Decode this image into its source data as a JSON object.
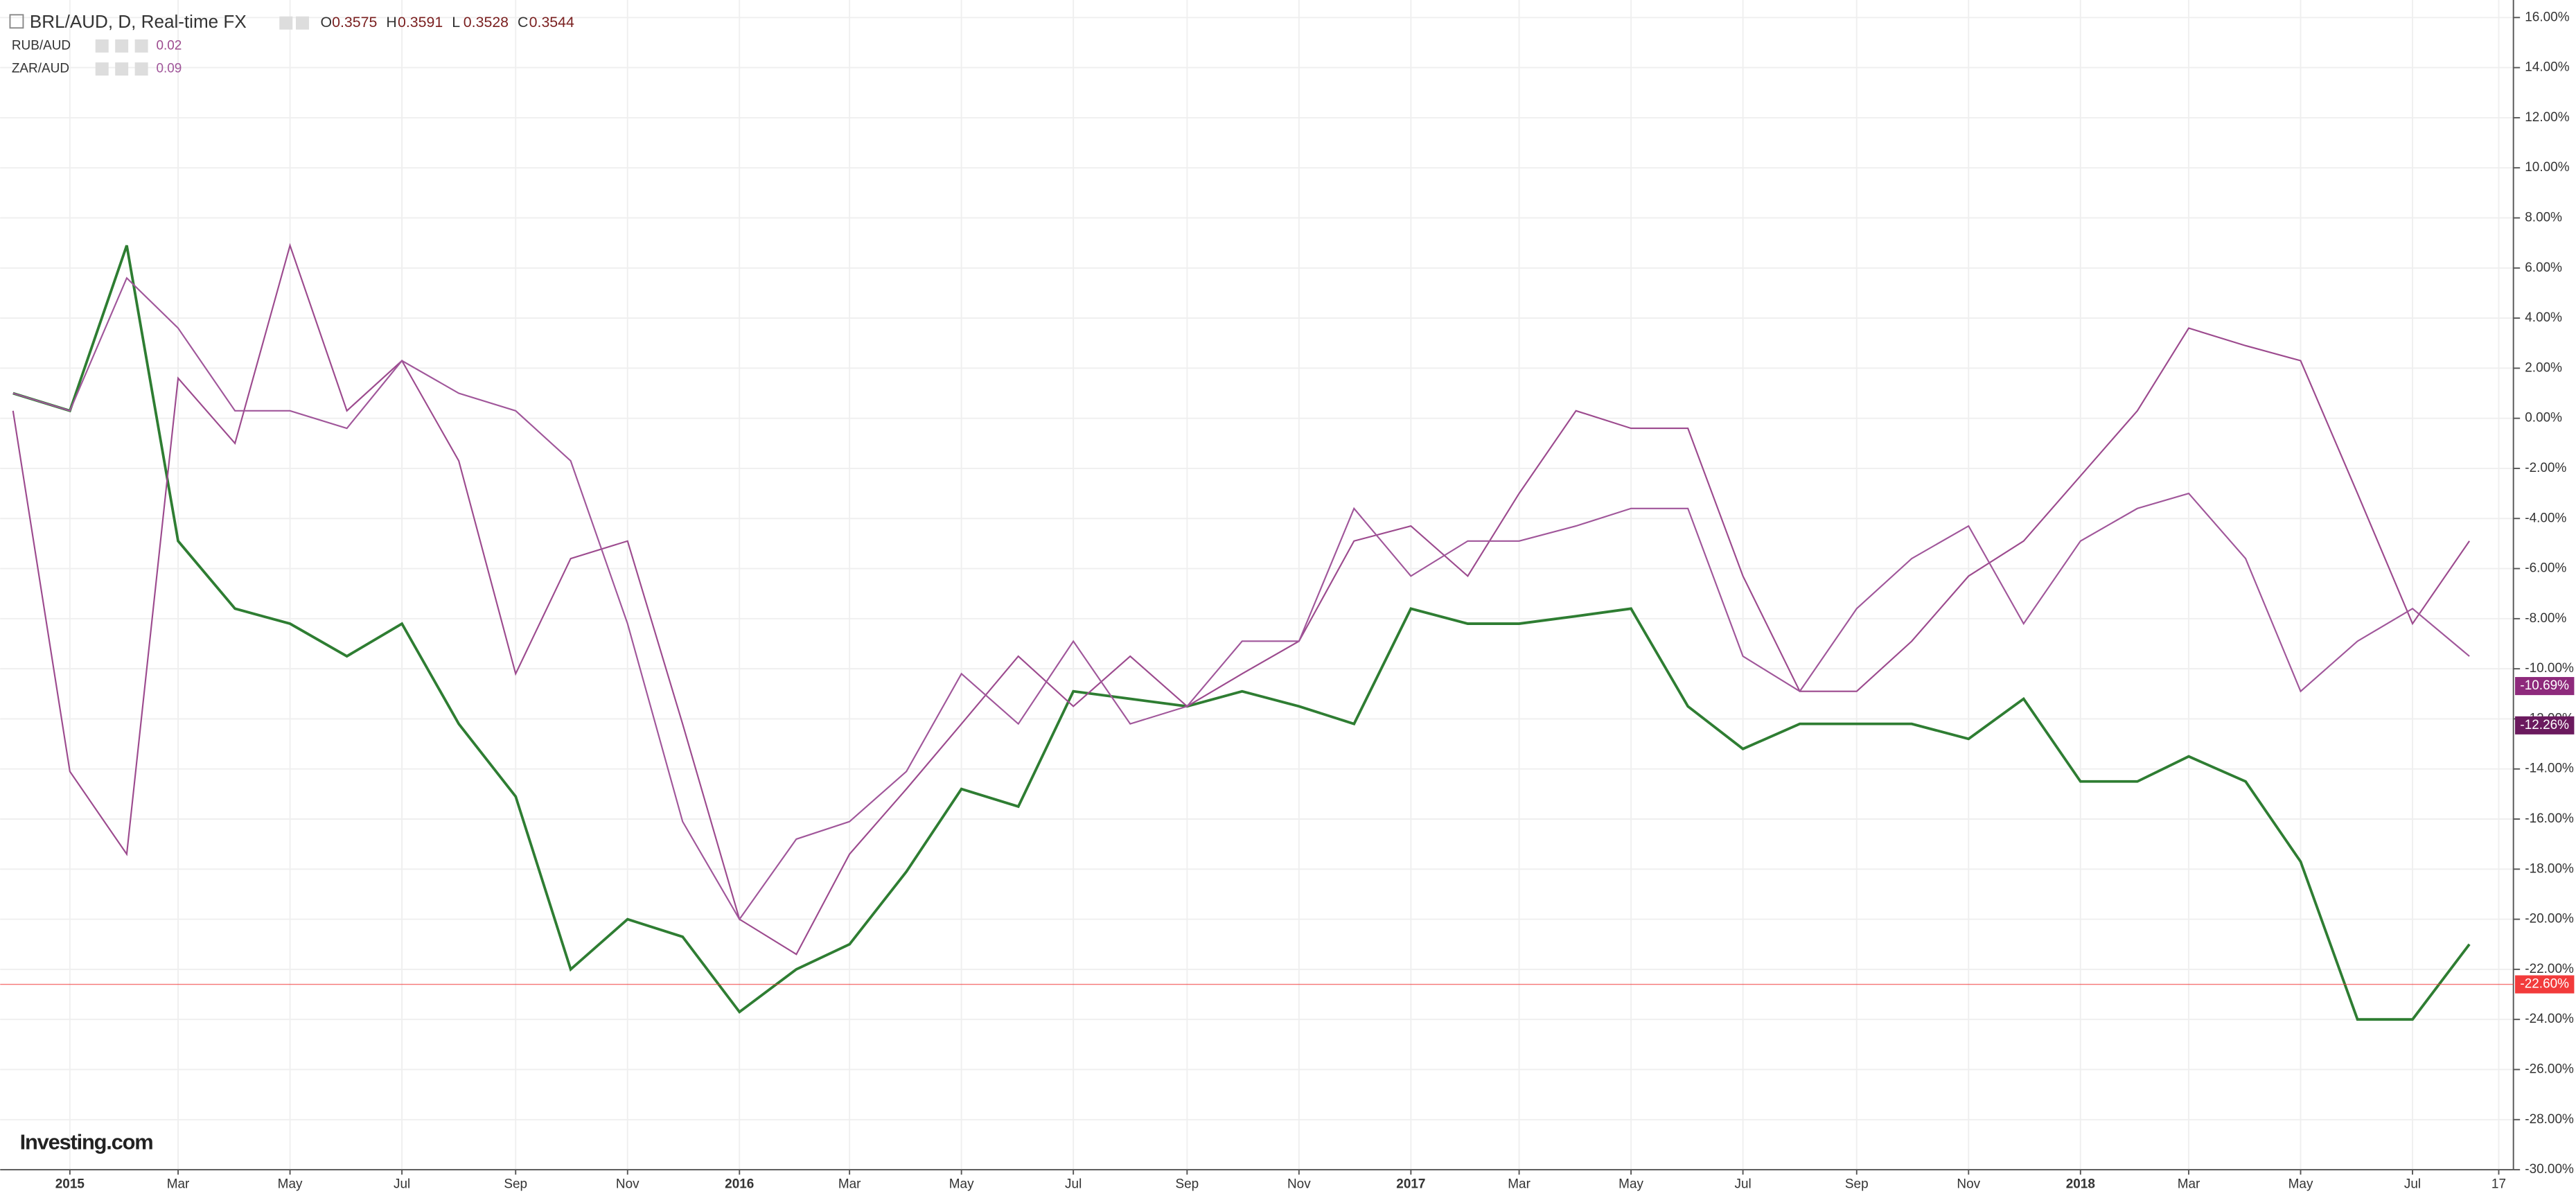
{
  "chart_data": {
    "type": "line",
    "title": "BRL/AUD, D, Real-time FX",
    "ohlc": [
      {
        "label": "O",
        "value": 0.3575
      },
      {
        "label": "H",
        "value": 0.3591
      },
      {
        "label": "L",
        "value": 0.3528
      },
      {
        "label": "C",
        "value": 0.3544
      }
    ],
    "x": [
      "2014-12",
      "2015-01",
      "2015-02",
      "2015-03",
      "2015-04",
      "2015-05",
      "2015-06",
      "2015-07",
      "2015-08",
      "2015-09",
      "2015-10",
      "2015-11",
      "2015-12",
      "2016-01",
      "2016-02",
      "2016-03",
      "2016-04",
      "2016-05",
      "2016-06",
      "2016-07",
      "2016-08",
      "2016-09",
      "2016-10",
      "2016-11",
      "2016-12",
      "2017-01",
      "2017-02",
      "2017-03",
      "2017-04",
      "2017-05",
      "2017-06",
      "2017-07",
      "2017-08",
      "2017-09",
      "2017-10",
      "2017-11",
      "2017-12",
      "2018-01",
      "2018-02",
      "2018-03",
      "2018-04",
      "2018-05",
      "2018-06",
      "2018-07",
      "2018-08"
    ],
    "series": [
      {
        "color": "#2e7d32",
        "price_line": {
          "value": -22.6,
          "label": "-22.60%"
        },
        "price_color": "#f23b3b",
        "values": [
          1.0,
          0.3,
          6.9,
          -4.9,
          -7.6,
          -8.2,
          -9.5,
          -8.2,
          -12.2,
          -15.1,
          -22.0,
          -20.0,
          -20.7,
          -23.7,
          -22.0,
          -21.0,
          -18.1,
          -14.8,
          -15.5,
          -10.9,
          -11.2,
          -11.5,
          -10.9,
          -11.5,
          -12.2,
          -7.6,
          -8.2,
          -8.2,
          -7.9,
          -7.6,
          -11.5,
          -13.2,
          -12.2,
          -12.2,
          -12.2,
          -12.8,
          -11.2,
          -14.5,
          -14.5,
          -13.5,
          -14.5,
          -17.7,
          -24.0,
          -24.0,
          -21.0
        ]
      },
      {
        "name": "RUB/AUD",
        "indicator": 0.02,
        "color": "#9c4a8e",
        "price_line": {
          "value": -10.69,
          "label": "-10.69%"
        },
        "price_color": "#8e2a7c",
        "values": [
          0.3,
          -14.1,
          -17.4,
          1.6,
          -1.0,
          6.9,
          0.3,
          2.3,
          -1.7,
          -10.2,
          -5.6,
          -4.9,
          -12.2,
          -20.0,
          -21.4,
          -17.4,
          -14.8,
          -12.2,
          -9.5,
          -11.5,
          -9.5,
          -11.5,
          -10.2,
          -8.9,
          -4.9,
          -4.3,
          -6.3,
          -3.0,
          0.3,
          -0.4,
          -0.4,
          -6.3,
          -10.9,
          -10.9,
          -8.9,
          -6.3,
          -4.9,
          -2.3,
          0.3,
          3.6,
          2.9,
          2.3,
          -3.0,
          -8.2,
          -4.9
        ]
      },
      {
        "name": "ZAR/AUD",
        "indicator": 0.09,
        "color": "#a0569a",
        "price_line": {
          "value": -12.26,
          "label": "-12.26%"
        },
        "price_color": "#6b1a5e",
        "values": [
          1.0,
          0.3,
          5.6,
          3.6,
          0.3,
          0.3,
          -0.4,
          2.3,
          1.0,
          0.3,
          -1.7,
          -8.2,
          -16.1,
          -20.0,
          -16.8,
          -16.1,
          -14.1,
          -10.2,
          -12.2,
          -8.9,
          -12.2,
          -11.5,
          -8.9,
          -8.9,
          -3.6,
          -6.3,
          -4.9,
          -4.9,
          -4.3,
          -3.6,
          -3.6,
          -9.5,
          -10.9,
          -7.6,
          -5.6,
          -4.3,
          -8.2,
          -4.9,
          -3.6,
          -3.0,
          -5.6,
          -10.9,
          -8.9,
          -7.6,
          -9.5
        ]
      }
    ],
    "xlim": [
      "2014-11-24",
      "2018-08-25"
    ],
    "xticks": [
      {
        "value": "2015-01",
        "label": "2015"
      },
      {
        "value": "2015-03",
        "label": "Mar"
      },
      {
        "value": "2015-05",
        "label": "May"
      },
      {
        "value": "2015-07",
        "label": "Jul"
      },
      {
        "value": "2015-09",
        "label": "Sep"
      },
      {
        "value": "2015-11",
        "label": "Nov"
      },
      {
        "value": "2016-01",
        "label": "2016"
      },
      {
        "value": "2016-03",
        "label": "Mar"
      },
      {
        "value": "2016-05",
        "label": "May"
      },
      {
        "value": "2016-07",
        "label": "Jul"
      },
      {
        "value": "2016-09",
        "label": "Sep"
      },
      {
        "value": "2016-11",
        "label": "Nov"
      },
      {
        "value": "2017-01",
        "label": "2017"
      },
      {
        "value": "2017-03",
        "label": "Mar"
      },
      {
        "value": "2017-05",
        "label": "May"
      },
      {
        "value": "2017-07",
        "label": "Jul"
      },
      {
        "value": "2017-09",
        "label": "Sep"
      },
      {
        "value": "2017-11",
        "label": "Nov"
      },
      {
        "value": "2018-01",
        "label": "2018"
      },
      {
        "value": "2018-03",
        "label": "Mar"
      },
      {
        "value": "2018-05",
        "label": "May"
      },
      {
        "value": "2018-07",
        "label": "Jul"
      },
      {
        "value": "2018-08-17",
        "label": "17"
      }
    ],
    "ylim": [
      -30,
      16.7
    ],
    "yticks": [
      {
        "value": 16,
        "label": "16.00%"
      },
      {
        "value": 14,
        "label": "14.00%"
      },
      {
        "value": 12,
        "label": "12.00%"
      },
      {
        "value": 10,
        "label": "10.00%"
      },
      {
        "value": 8,
        "label": "8.00%"
      },
      {
        "value": 6,
        "label": "6.00%"
      },
      {
        "value": 4,
        "label": "4.00%"
      },
      {
        "value": 2,
        "label": "2.00%"
      },
      {
        "value": 0,
        "label": "0.00%"
      },
      {
        "value": -2,
        "label": "-2.00%"
      },
      {
        "value": -4,
        "label": "-4.00%"
      },
      {
        "value": -6,
        "label": "-6.00%"
      },
      {
        "value": -8,
        "label": "-8.00%"
      },
      {
        "value": -10,
        "label": "-10.00%"
      },
      {
        "value": -12,
        "label": "-12.00%"
      },
      {
        "value": -14,
        "label": "-14.00%"
      },
      {
        "value": -16,
        "label": "-16.00%"
      },
      {
        "value": -18,
        "label": "-18.00%"
      },
      {
        "value": -20,
        "label": "-20.00%"
      },
      {
        "value": -22,
        "label": "-22.00%"
      },
      {
        "value": -24,
        "label": "-24.00%"
      },
      {
        "value": -26,
        "label": "-26.00%"
      },
      {
        "value": -28,
        "label": "-28.00%"
      },
      {
        "value": -30,
        "label": "-30.00%"
      }
    ],
    "grid": true,
    "logo": "Investing.com"
  }
}
